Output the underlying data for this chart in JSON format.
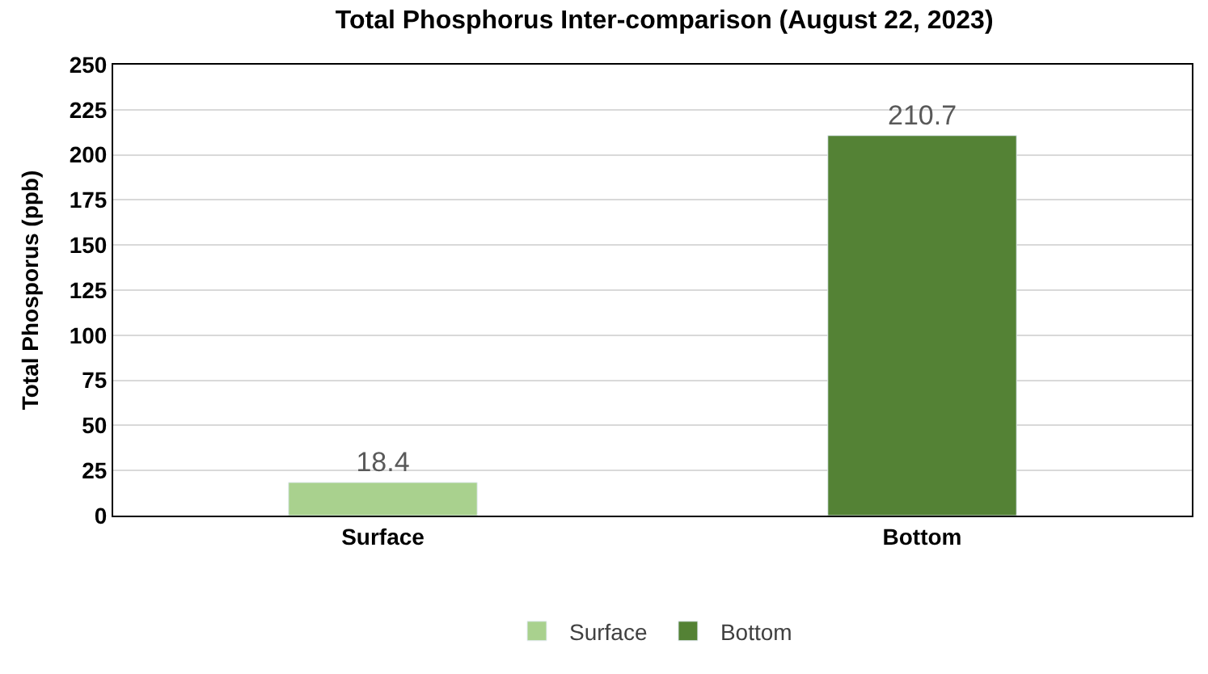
{
  "chart_data": {
    "type": "bar",
    "title": "Total Phosphorus Inter-comparison (August 22, 2023)",
    "ylabel": "Total Phosporus (ppb)",
    "categories": [
      "Surface",
      "Bottom"
    ],
    "series": [
      {
        "name": "Surface",
        "color": "#a9d18e",
        "values": [
          18.4,
          null
        ]
      },
      {
        "name": "Bottom",
        "color": "#548235",
        "values": [
          null,
          210.7
        ]
      }
    ],
    "ylim": [
      0,
      250
    ],
    "yticks": [
      0,
      25,
      50,
      75,
      100,
      125,
      150,
      175,
      200,
      225,
      250
    ],
    "grid": "y",
    "legend": "bottom",
    "data_labels": true
  }
}
